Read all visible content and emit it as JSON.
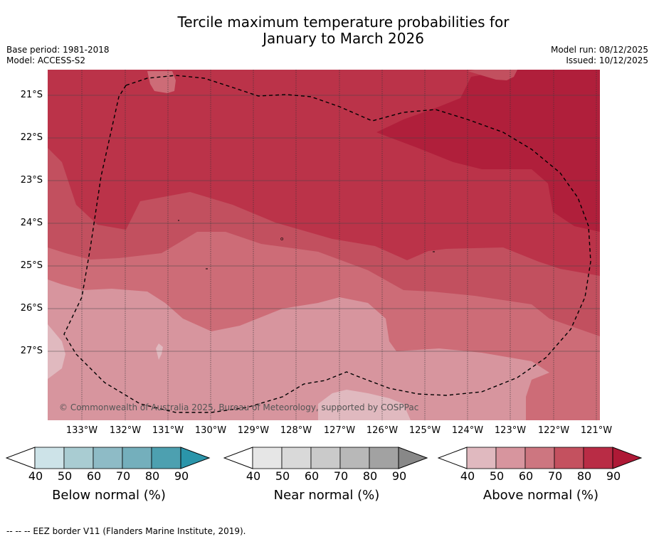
{
  "title_line1": "Tercile maximum temperature probabilities for",
  "title_line2": "January to March 2026",
  "base_period": "Base period: 1981-2018",
  "model": "Model: ACCESS-S2",
  "model_run": "Model run: 08/12/2025",
  "issued": "Issued: 10/12/2025",
  "copyright": "© Commonwealth of Australia 2025, Bureau of Meteorology, supported by COSPPac",
  "lat_labels": [
    "21°S",
    "22°S",
    "23°S",
    "24°S",
    "25°S",
    "26°S",
    "27°S"
  ],
  "lon_labels": [
    "133°W",
    "132°W",
    "131°W",
    "130°W",
    "129°W",
    "128°W",
    "127°W",
    "126°W",
    "125°W",
    "124°W",
    "123°W",
    "122°W",
    "121°W"
  ],
  "colorbars": [
    {
      "title": "Below normal (%)",
      "ticks": [
        "40",
        "50",
        "60",
        "70",
        "80",
        "90"
      ],
      "colors": [
        "#cde3e8",
        "#a9ccd2",
        "#8ebbc6",
        "#74afbc",
        "#4da0b0",
        "#2b95aa"
      ]
    },
    {
      "title": "Near normal (%)",
      "ticks": [
        "40",
        "50",
        "60",
        "70",
        "80",
        "90"
      ],
      "colors": [
        "#e6e6e6",
        "#d9d9d9",
        "#cacaca",
        "#b8b8b8",
        "#a2a2a2",
        "#888888"
      ]
    },
    {
      "title": "Above normal (%)",
      "ticks": [
        "40",
        "50",
        "60",
        "70",
        "80",
        "90"
      ],
      "colors": [
        "#e0b9bf",
        "#d7959e",
        "#cd7680",
        "#c4515f",
        "#b92c45",
        "#ae1936"
      ]
    }
  ],
  "footer": "--  --  -- EEZ border V11 (Flanders Marine Institute, 2019).",
  "colors": {
    "band40": "#e0b9bf",
    "band50": "#d7959e",
    "band60": "#cd6c77",
    "band70": "#c2505f",
    "band80": "#bb3349",
    "band90": "#b01f3b"
  }
}
